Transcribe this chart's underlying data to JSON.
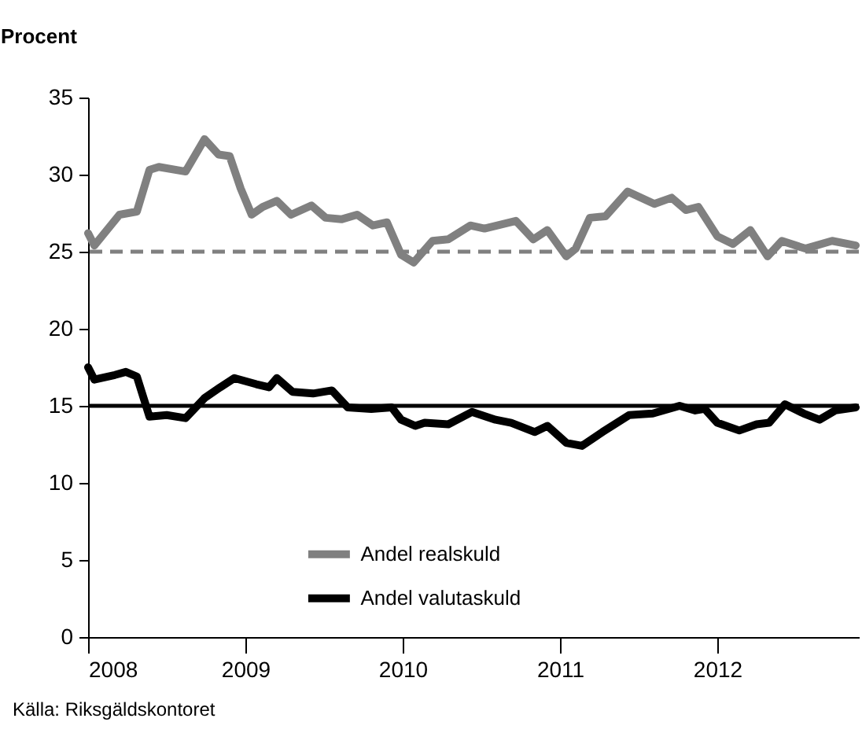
{
  "chart_data": {
    "type": "line",
    "ylabel": "Procent",
    "annotations": [
      "Källa: Riksgäldskontoret"
    ],
    "xlim": [
      2008,
      2012.9
    ],
    "xticks": [
      2008,
      2009,
      2010,
      2011,
      2012
    ],
    "ylim": [
      0,
      35
    ],
    "yticks": [
      0,
      5,
      10,
      15,
      20,
      25,
      30,
      35
    ],
    "grid": false,
    "legend": "bottom",
    "line_style": "solid",
    "marker": "none",
    "ref_lines": [
      {
        "axis": "y",
        "value": 25,
        "color": "#808080",
        "line_style": "dashed"
      },
      {
        "axis": "y",
        "value": 15,
        "color": "#000000",
        "line_style": "solid"
      }
    ],
    "series": [
      {
        "name": "Andel realskuld",
        "color": "#808080",
        "x": [
          2008.0,
          2008.04,
          2008.2,
          2008.31,
          2008.39,
          2008.45,
          2008.62,
          2008.74,
          2008.83,
          2008.9,
          2008.97,
          2009.04,
          2009.11,
          2009.2,
          2009.29,
          2009.42,
          2009.51,
          2009.61,
          2009.71,
          2009.81,
          2009.9,
          2009.99,
          2010.07,
          2010.19,
          2010.29,
          2010.43,
          2010.52,
          2010.72,
          2010.83,
          2010.92,
          2011.04,
          2011.1,
          2011.19,
          2011.29,
          2011.43,
          2011.6,
          2011.71,
          2011.8,
          2011.88,
          2012.0,
          2012.1,
          2012.21,
          2012.32,
          2012.41,
          2012.56,
          2012.73,
          2012.88
        ],
        "values": [
          26.2,
          25.4,
          27.4,
          27.6,
          30.3,
          30.5,
          30.2,
          32.3,
          31.3,
          31.2,
          29.1,
          27.4,
          27.9,
          28.3,
          27.4,
          28.0,
          27.2,
          27.1,
          27.4,
          26.7,
          26.9,
          24.8,
          24.3,
          25.7,
          25.8,
          26.7,
          26.5,
          27.0,
          25.8,
          26.4,
          24.7,
          25.2,
          27.2,
          27.3,
          28.9,
          28.1,
          28.5,
          27.7,
          27.9,
          26.0,
          25.5,
          26.4,
          24.7,
          25.7,
          25.2,
          25.7,
          25.4
        ]
      },
      {
        "name": "Andel valutaskuld",
        "color": "#000000",
        "x": [
          2008.0,
          2008.04,
          2008.17,
          2008.24,
          2008.31,
          2008.39,
          2008.5,
          2008.62,
          2008.74,
          2008.84,
          2008.93,
          2009.07,
          2009.15,
          2009.2,
          2009.3,
          2009.43,
          2009.55,
          2009.65,
          2009.8,
          2009.93,
          2009.99,
          2010.08,
          2010.14,
          2010.29,
          2010.44,
          2010.59,
          2010.69,
          2010.84,
          2010.92,
          2011.04,
          2011.14,
          2011.27,
          2011.44,
          2011.59,
          2011.76,
          2011.86,
          2011.92,
          2012.0,
          2012.14,
          2012.25,
          2012.33,
          2012.43,
          2012.55,
          2012.65,
          2012.75,
          2012.88
        ],
        "values": [
          17.5,
          16.7,
          17.0,
          17.2,
          16.9,
          14.3,
          14.4,
          14.2,
          15.5,
          16.2,
          16.8,
          16.4,
          16.2,
          16.8,
          15.9,
          15.8,
          16.0,
          14.9,
          14.8,
          14.9,
          14.1,
          13.7,
          13.9,
          13.8,
          14.6,
          14.1,
          13.9,
          13.3,
          13.7,
          12.6,
          12.4,
          13.3,
          14.4,
          14.5,
          15.0,
          14.7,
          14.8,
          13.9,
          13.4,
          13.8,
          13.9,
          15.1,
          14.5,
          14.1,
          14.7,
          14.9
        ]
      }
    ]
  }
}
